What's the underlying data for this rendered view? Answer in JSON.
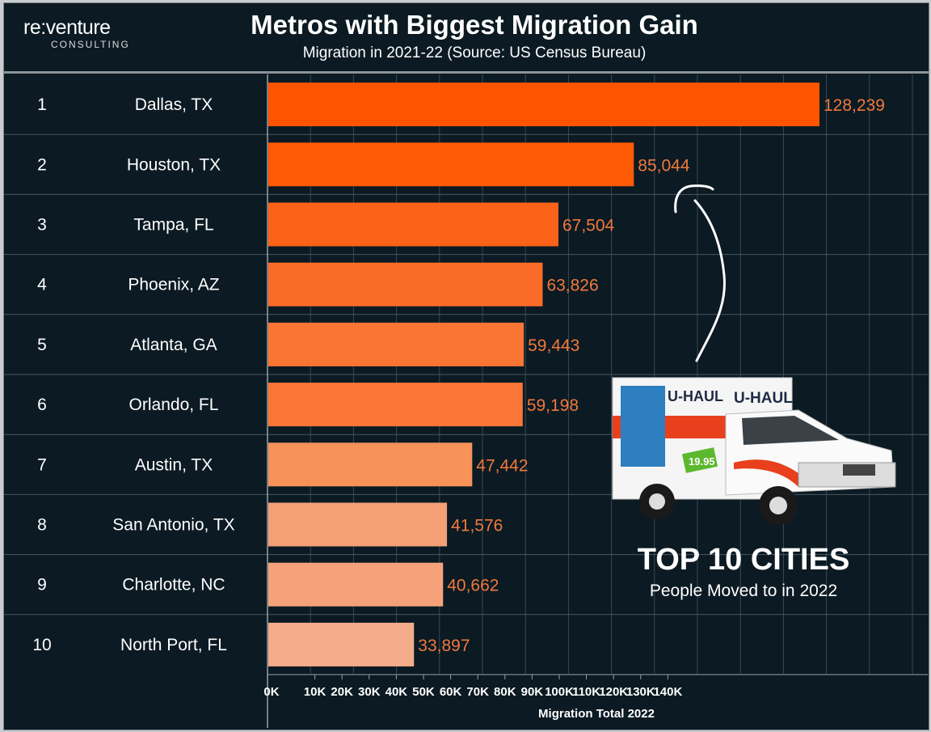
{
  "logo": {
    "main": "re:venture",
    "sub": "CONSULTING"
  },
  "chart_data": {
    "type": "bar",
    "orientation": "horizontal",
    "title": "Metros with Biggest Migration Gain",
    "subtitle": "Migration in 2021-22 (Source: US Census Bureau)",
    "ranks": [
      "1",
      "2",
      "3",
      "4",
      "5",
      "6",
      "7",
      "8",
      "9",
      "10"
    ],
    "categories": [
      "Dallas, TX",
      "Houston, TX",
      "Tampa, FL",
      "Phoenix, AZ",
      "Atlanta, GA",
      "Orlando, FL",
      "Austin, TX",
      "San Antonio, TX",
      "Charlotte, NC",
      "North Port, FL"
    ],
    "values": [
      128239,
      85044,
      67504,
      63826,
      59443,
      59198,
      47442,
      41576,
      40662,
      33897
    ],
    "value_labels": [
      "128,239",
      "85,044",
      "67,504",
      "63,826",
      "59,443",
      "59,198",
      "47,442",
      "41,576",
      "40,662",
      "33,897"
    ],
    "bar_colors": [
      "#ff5500",
      "#ff5a06",
      "#fd6219",
      "#fb6b28",
      "#f97534",
      "#f97636",
      "#f79259",
      "#f5a077",
      "#f5a27b",
      "#f4ac8a"
    ],
    "xlabel": "Migration Total 2022",
    "xticks": [
      "0K",
      "10K",
      "20K",
      "30K",
      "40K",
      "50K",
      "60K",
      "70K",
      "80K",
      "90K",
      "100K",
      "110K",
      "120K",
      "130K",
      "140K"
    ],
    "xlim": [
      0,
      150000
    ],
    "grid": true,
    "value_label_color": "#f0793c"
  },
  "annotation": {
    "headline": "TOP 10 CITIES",
    "subline": "People Moved to in 2022",
    "truck_brand": "U-HAUL",
    "truck_price": "19.95"
  }
}
